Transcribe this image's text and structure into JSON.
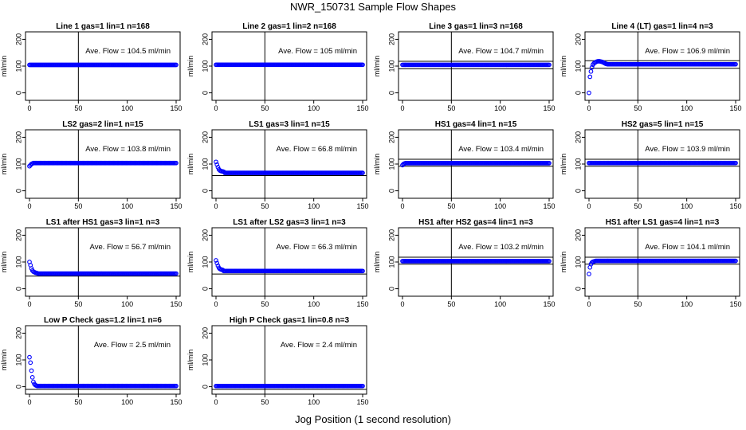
{
  "title": "NWR_150731  Sample Flow Shapes",
  "xlabel": "Jog Position (1 second resolution)",
  "ylabel": "ml/min",
  "xticks": [
    0,
    50,
    100,
    150
  ],
  "yticks": [
    0,
    100,
    200
  ],
  "xlim": [
    0,
    150
  ],
  "ylim": [
    0,
    200
  ],
  "vline_x": 50,
  "point_color": "#0000ff",
  "chart_data": [
    {
      "type": "scatter",
      "title": "Line 1 gas=1 lin=1 n=168",
      "annotation": "Ave. Flow = 104.5  ml/min",
      "mean": 104.5,
      "start": [],
      "plateau": 104.5,
      "ref_lines": []
    },
    {
      "type": "scatter",
      "title": "Line 2 gas=1 lin=2 n=168",
      "annotation": "Ave. Flow = 105  ml/min",
      "mean": 105,
      "start": [],
      "plateau": 105,
      "ref_lines": []
    },
    {
      "type": "scatter",
      "title": "Line 3 gas=1 lin=3 n=168",
      "annotation": "Ave. Flow = 104.7  ml/min",
      "mean": 104.7,
      "start": [],
      "plateau": 104.7,
      "ref_lines": [
        90,
        118
      ]
    },
    {
      "type": "scatter",
      "title": "Line 4 (LT) gas=1 lin=4 n=3",
      "annotation": "Ave. Flow = 106.9  ml/min",
      "mean": 106.9,
      "start": [
        0,
        60,
        80,
        95,
        105,
        110,
        113,
        115,
        117,
        118,
        118,
        118,
        117,
        116,
        115,
        113,
        111,
        109,
        108
      ],
      "plateau": 106.9,
      "ref_lines": [
        92,
        120
      ]
    },
    {
      "type": "scatter",
      "title": "LS2 gas=2 lin=1 n=15",
      "annotation": "Ave. Flow = 103.8  ml/min",
      "mean": 103.8,
      "start": [
        92,
        96,
        100,
        102
      ],
      "plateau": 103.8,
      "ref_lines": []
    },
    {
      "type": "scatter",
      "title": "LS1 gas=3 lin=1 n=15",
      "annotation": "Ave. Flow = 66.8  ml/min",
      "mean": 66.8,
      "start": [
        108,
        98,
        88,
        80,
        76,
        74,
        73,
        72,
        71
      ],
      "plateau": 67,
      "ref_lines": [
        57
      ]
    },
    {
      "type": "scatter",
      "title": "HS1 gas=4 lin=1 n=15",
      "annotation": "Ave. Flow = 103.4  ml/min",
      "mean": 103.4,
      "start": [
        96,
        100,
        102
      ],
      "plateau": 103.4,
      "ref_lines": [
        92,
        118
      ]
    },
    {
      "type": "scatter",
      "title": "HS2 gas=5 lin=1 n=15",
      "annotation": "Ave. Flow = 103.9  ml/min",
      "mean": 103.9,
      "start": [],
      "plateau": 103.9,
      "ref_lines": [
        92,
        118
      ]
    },
    {
      "type": "scatter",
      "title": "LS1 after HS1 gas=3 lin=1 n=3",
      "annotation": "Ave. Flow = 56.7  ml/min",
      "mean": 56.7,
      "start": [
        100,
        88,
        76,
        68,
        64,
        62,
        60,
        59,
        58
      ],
      "plateau": 56.7,
      "ref_lines": [
        47
      ]
    },
    {
      "type": "scatter",
      "title": "LS1 after LS2 gas=3 lin=1 n=3",
      "annotation": "Ave. Flow = 66.3  ml/min",
      "mean": 66.3,
      "start": [
        106,
        96,
        86,
        78,
        74,
        72,
        71,
        70
      ],
      "plateau": 66.3,
      "ref_lines": [
        55
      ]
    },
    {
      "type": "scatter",
      "title": "HS1 after HS2 gas=4 lin=1 n=3",
      "annotation": "Ave. Flow = 103.2  ml/min",
      "mean": 103.2,
      "start": [],
      "plateau": 103.2,
      "ref_lines": [
        92,
        118
      ]
    },
    {
      "type": "scatter",
      "title": "HS1 after LS1 gas=4 lin=1 n=3",
      "annotation": "Ave. Flow = 104.1  ml/min",
      "mean": 104.1,
      "start": [
        55,
        80,
        92,
        98,
        101,
        102,
        103
      ],
      "plateau": 104.1,
      "ref_lines": [
        92,
        118
      ]
    },
    {
      "type": "scatter",
      "title": "Low P Check gas=1.2 lin=1 n=6",
      "annotation": "Ave. Flow = 2.5  ml/min",
      "mean": 2.5,
      "start": [
        110,
        90,
        60,
        35,
        18,
        10,
        6,
        4
      ],
      "plateau": 2.5,
      "ref_lines": [
        -10
      ]
    },
    {
      "type": "scatter",
      "title": "High P Check gas=1 lin=0.8 n=3",
      "annotation": "Ave. Flow = 2.4  ml/min",
      "mean": 2.4,
      "start": [],
      "plateau": 2.4,
      "ref_lines": [
        -10
      ]
    }
  ]
}
